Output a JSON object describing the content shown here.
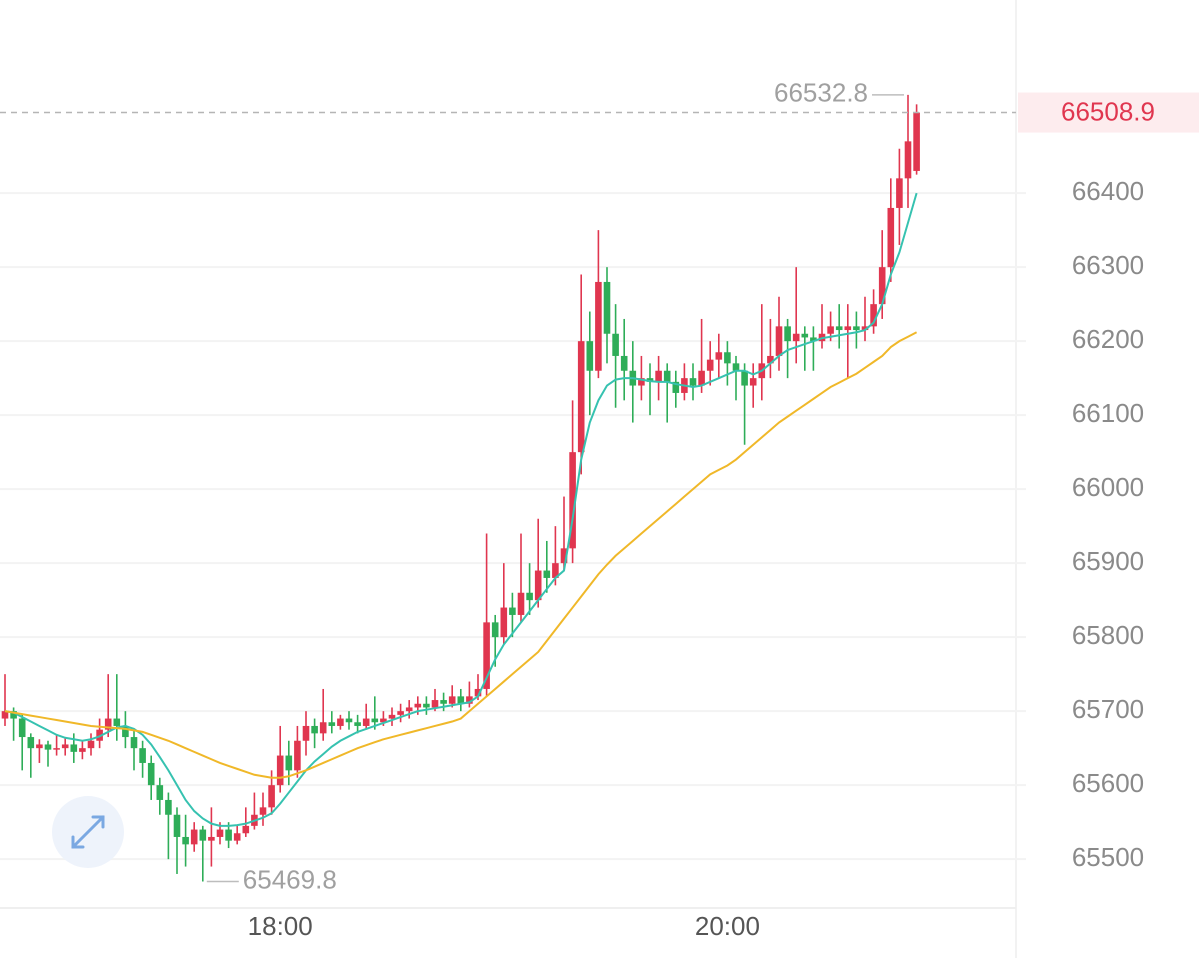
{
  "chart_data": {
    "type": "candlestick",
    "categories": [
      null,
      null,
      null,
      null,
      null,
      null,
      null,
      null,
      null,
      null,
      null,
      null,
      null,
      null,
      null,
      null,
      null,
      null,
      null,
      null,
      null,
      null,
      null,
      null,
      null,
      null,
      null,
      null,
      null,
      null,
      null,
      null,
      "18:00",
      null,
      null,
      null,
      null,
      null,
      null,
      null,
      null,
      null,
      null,
      null,
      null,
      null,
      null,
      null,
      null,
      null,
      null,
      null,
      null,
      null,
      null,
      null,
      null,
      null,
      null,
      null,
      null,
      null,
      null,
      null,
      null,
      null,
      null,
      null,
      null,
      null,
      null,
      null,
      null,
      null,
      null,
      null,
      null,
      null,
      null,
      null,
      null,
      null,
      null,
      null,
      "20:00",
      null,
      null,
      null,
      null,
      null,
      null,
      null,
      null,
      null,
      null,
      null,
      null,
      null,
      null,
      null,
      null,
      null,
      null,
      null,
      null,
      null,
      null
    ],
    "open": [
      65690,
      65700,
      65690,
      65665,
      65650,
      65655,
      65648,
      65650,
      65655,
      65645,
      65650,
      65660,
      65675,
      65690,
      65680,
      65665,
      65650,
      65630,
      65600,
      65580,
      65560,
      65530,
      65520,
      65540,
      65525,
      65530,
      65540,
      65525,
      65535,
      65545,
      65560,
      65570,
      65600,
      65640,
      65620,
      65660,
      65680,
      65670,
      65685,
      65680,
      65690,
      65685,
      65680,
      65690,
      65685,
      65690,
      65695,
      65700,
      65705,
      65710,
      65705,
      65715,
      65710,
      65720,
      65710,
      65720,
      65730,
      65820,
      65800,
      65840,
      65830,
      65860,
      65850,
      65890,
      65880,
      65900,
      65920,
      66050,
      66200,
      66160,
      66280,
      66210,
      66180,
      66160,
      66140,
      66150,
      66145,
      66160,
      66145,
      66130,
      66150,
      66140,
      66160,
      66175,
      66185,
      66170,
      66160,
      66140,
      66150,
      66170,
      66180,
      66220,
      66200,
      66210,
      66205,
      66200,
      66210,
      66220,
      66215,
      66220,
      66215,
      66220,
      66250,
      66300,
      66380,
      66420,
      66430
    ],
    "high": [
      65750,
      65705,
      65695,
      65670,
      65662,
      65660,
      65668,
      65665,
      65670,
      65660,
      65670,
      65690,
      65750,
      65750,
      65700,
      65675,
      65660,
      65640,
      65610,
      65590,
      65570,
      65560,
      65550,
      65545,
      65570,
      65550,
      65550,
      65545,
      65570,
      65590,
      65590,
      65620,
      65680,
      65660,
      65680,
      65700,
      65690,
      65730,
      65700,
      65695,
      65700,
      65695,
      65710,
      65720,
      65700,
      65705,
      65710,
      65715,
      65720,
      65720,
      65730,
      65725,
      65735,
      65730,
      65740,
      65750,
      65940,
      65830,
      65900,
      65860,
      65940,
      65900,
      65960,
      65930,
      65950,
      65990,
      66120,
      66290,
      66240,
      66350,
      66300,
      66250,
      66230,
      66200,
      66180,
      66170,
      66180,
      66170,
      66160,
      66170,
      66170,
      66230,
      66200,
      66210,
      66200,
      66180,
      66170,
      66170,
      66250,
      66230,
      66260,
      66230,
      66300,
      66220,
      66220,
      66250,
      66240,
      66250,
      66250,
      66240,
      66260,
      66270,
      66350,
      66420,
      66460,
      66532.8,
      66520
    ],
    "low": [
      65680,
      65660,
      65620,
      65610,
      65630,
      65625,
      65640,
      65640,
      65630,
      65635,
      65640,
      65650,
      65665,
      65660,
      65650,
      65620,
      65610,
      65580,
      65560,
      65500,
      65480,
      65490,
      65510,
      65469.8,
      65490,
      65520,
      65515,
      65520,
      65530,
      65540,
      65545,
      65560,
      65590,
      65600,
      65610,
      65640,
      65650,
      65660,
      65670,
      65675,
      65675,
      65670,
      65675,
      65675,
      65680,
      65680,
      65685,
      65690,
      65695,
      65695,
      65700,
      65700,
      65705,
      65700,
      65705,
      65715,
      65720,
      65760,
      65790,
      65800,
      65820,
      65830,
      65840,
      65860,
      65870,
      65890,
      65900,
      66020,
      66100,
      66150,
      66170,
      66110,
      66120,
      66090,
      66120,
      66100,
      66120,
      66090,
      66110,
      66120,
      66120,
      66130,
      66140,
      66150,
      66140,
      66120,
      66060,
      66110,
      66120,
      66150,
      66160,
      66150,
      66170,
      66160,
      66160,
      66190,
      66200,
      66190,
      66150,
      66190,
      66200,
      66210,
      66230,
      66280,
      66330,
      66380,
      66425
    ],
    "close": [
      65700,
      65690,
      65665,
      65650,
      65655,
      65648,
      65650,
      65655,
      65645,
      65650,
      65660,
      65675,
      65690,
      65680,
      65665,
      65650,
      65630,
      65600,
      65580,
      65560,
      65530,
      65520,
      65540,
      65525,
      65530,
      65540,
      65525,
      65535,
      65545,
      65560,
      65570,
      65600,
      65640,
      65620,
      65660,
      65680,
      65670,
      65685,
      65680,
      65690,
      65685,
      65680,
      65690,
      65685,
      65690,
      65695,
      65700,
      65705,
      65710,
      65705,
      65715,
      65710,
      65720,
      65710,
      65720,
      65730,
      65820,
      65800,
      65840,
      65830,
      65860,
      65850,
      65890,
      65880,
      65900,
      65920,
      66050,
      66200,
      66160,
      66280,
      66210,
      66180,
      66160,
      66140,
      66150,
      66145,
      66160,
      66145,
      66130,
      66150,
      66140,
      66160,
      66175,
      66185,
      66170,
      66160,
      66140,
      66150,
      66170,
      66180,
      66220,
      66200,
      66210,
      66205,
      66200,
      66210,
      66220,
      66215,
      66220,
      66215,
      66220,
      66250,
      66300,
      66380,
      66420,
      66470,
      66508.9
    ],
    "up_color": "#e0364f",
    "down_color": "#2ead58",
    "ma_lines": [
      {
        "color": "#36c2b0",
        "values": [
          65700,
          65698,
          65692,
          65686,
          65680,
          65674,
          65668,
          65664,
          65662,
          65660,
          65662,
          65666,
          65672,
          65678,
          65680,
          65676,
          65668,
          65655,
          65638,
          65620,
          65600,
          65580,
          65565,
          65555,
          65548,
          65545,
          65545,
          65546,
          65548,
          65552,
          65556,
          65562,
          65575,
          65590,
          65605,
          65620,
          65632,
          65642,
          65652,
          65660,
          65666,
          65672,
          65676,
          65680,
          65684,
          65688,
          65692,
          65696,
          65700,
          65702,
          65704,
          65706,
          65708,
          65710,
          65712,
          65720,
          65745,
          65770,
          65790,
          65805,
          65820,
          65835,
          65850,
          65865,
          65880,
          65890,
          65960,
          66040,
          66090,
          66120,
          66140,
          66148,
          66150,
          66150,
          66148,
          66146,
          66145,
          66145,
          66142,
          66140,
          66138,
          66140,
          66145,
          66150,
          66155,
          66160,
          66160,
          66155,
          66160,
          66170,
          66180,
          66188,
          66192,
          66196,
          66200,
          66204,
          66206,
          66208,
          66210,
          66212,
          66215,
          66225,
          66250,
          66290,
          66320,
          66360,
          66400
        ]
      },
      {
        "color": "#f0b829",
        "values": [
          65700,
          65698,
          65696,
          65694,
          65692,
          65690,
          65688,
          65686,
          65684,
          65682,
          65680,
          65679,
          65678,
          65677,
          65676,
          65674,
          65672,
          65668,
          65664,
          65660,
          65655,
          65650,
          65645,
          65640,
          65635,
          65630,
          65626,
          65622,
          65618,
          65614,
          65612,
          65610,
          65610,
          65612,
          65616,
          65620,
          65625,
          65630,
          65635,
          65640,
          65645,
          65650,
          65654,
          65658,
          65662,
          65665,
          65668,
          65671,
          65674,
          65677,
          65680,
          65683,
          65686,
          65690,
          65700,
          65710,
          65720,
          65730,
          65740,
          65750,
          65760,
          65770,
          65780,
          65795,
          65810,
          65825,
          65840,
          65855,
          65870,
          65885,
          65898,
          65910,
          65920,
          65930,
          65940,
          65950,
          65960,
          65970,
          65980,
          65990,
          66000,
          66010,
          66020,
          66026,
          66032,
          66040,
          66050,
          66060,
          66070,
          66080,
          66090,
          66098,
          66106,
          66114,
          66122,
          66130,
          66138,
          66144,
          66150,
          66156,
          66164,
          66172,
          66180,
          66192,
          66200,
          66206,
          66212
        ]
      }
    ],
    "ylim": [
      65434,
      66661
    ],
    "yticks": [
      65500,
      65600,
      65700,
      65800,
      65900,
      66000,
      66100,
      66200,
      66300,
      66400
    ],
    "grid": true
  }
}
